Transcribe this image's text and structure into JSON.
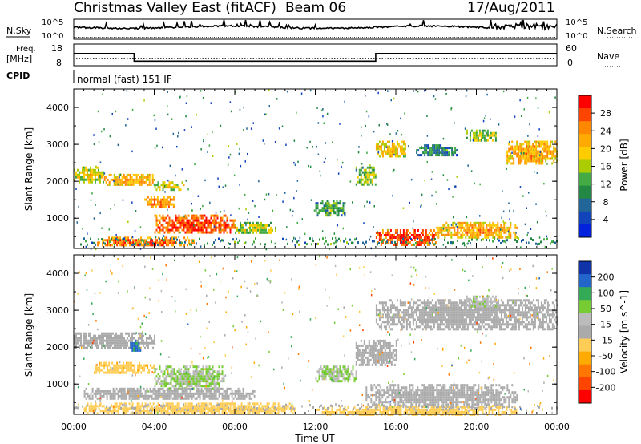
{
  "header": {
    "station": "Christmas Valley East (fitACF)",
    "beam": "Beam 06",
    "date": "17/Aug/2011"
  },
  "aux_panels": {
    "nsky": {
      "label": "N.Sky",
      "ticks": [
        "10^5",
        "10^0"
      ],
      "right_ticks": [
        "10^5",
        "10^0"
      ],
      "right_label": "N.Search"
    },
    "freq": {
      "label_line1": "Freq.",
      "label_line2": "[MHz]",
      "ticks": [
        "18",
        "8"
      ],
      "right_ticks": [
        "60",
        "0"
      ],
      "right_label": "Nave"
    },
    "cpid": {
      "label": "CPID",
      "text": "normal (fast) 151 IF"
    }
  },
  "x_axis": {
    "label": "Time UT",
    "ticks": [
      "00:00",
      "04:00",
      "08:00",
      "12:00",
      "16:00",
      "20:00",
      "00:00"
    ]
  },
  "panels": {
    "power": {
      "ylabel": "Slant Range [km]",
      "yticks": [
        "4000",
        "3000",
        "2000",
        "1000"
      ],
      "cbar_label": "Power [dB]",
      "cbar_ticks": [
        "28",
        "24",
        "20",
        "16",
        "12",
        "8",
        "4"
      ],
      "cbar_colors": [
        "#ff0000",
        "#ff4400",
        "#ff8800",
        "#ffaa00",
        "#ffcc00",
        "#aacc00",
        "#44aa44",
        "#228844",
        "#226699",
        "#1144bb",
        "#0022dd"
      ]
    },
    "velocity": {
      "ylabel": "Slant Range [km]",
      "yticks": [
        "4000",
        "3000",
        "2000",
        "1000"
      ],
      "cbar_label": "Velocity [m s^-1]",
      "cbar_ticks": [
        "200",
        "100",
        "50",
        "15",
        "-15",
        "-50",
        "-100",
        "-200"
      ],
      "cbar_colors": [
        "#1133aa",
        "#2266cc",
        "#33aa55",
        "#77cc33",
        "#bbbbbb",
        "#aaaaaa",
        "#ffcc55",
        "#ffaa00",
        "#ff7700",
        "#ff4400",
        "#ff0000"
      ]
    }
  },
  "chart_data": [
    {
      "type": "heatmap",
      "title": "Christmas Valley East (fitACF) Beam 06 17/Aug/2011",
      "xlabel": "Time UT",
      "ylabel": "Slant Range [km]",
      "colorbar_label": "Power [dB]",
      "x_range": [
        "00:00",
        "24:00"
      ],
      "ylim": [
        180,
        4500
      ],
      "clim": [
        0,
        30
      ],
      "regions": [
        {
          "t_start": 0.0,
          "t_end": 1.5,
          "r_low": 2000,
          "r_high": 2400,
          "value": 18
        },
        {
          "t_start": 1.5,
          "t_end": 4.0,
          "r_low": 1900,
          "r_high": 2200,
          "value": 22
        },
        {
          "t_start": 4.0,
          "t_end": 5.5,
          "r_low": 1800,
          "r_high": 2000,
          "value": 18
        },
        {
          "t_start": 3.5,
          "t_end": 5.0,
          "r_low": 1300,
          "r_high": 1600,
          "value": 24
        },
        {
          "t_start": 4.0,
          "t_end": 8.0,
          "r_low": 600,
          "r_high": 1100,
          "value": 28
        },
        {
          "t_start": 1.0,
          "t_end": 6.0,
          "r_low": 250,
          "r_high": 500,
          "value": 26
        },
        {
          "t_start": 8.0,
          "t_end": 10.0,
          "r_low": 600,
          "r_high": 900,
          "value": 16
        },
        {
          "t_start": 12.0,
          "t_end": 13.5,
          "r_low": 1100,
          "r_high": 1500,
          "value": 12
        },
        {
          "t_start": 14.0,
          "t_end": 15.0,
          "r_low": 1900,
          "r_high": 2400,
          "value": 14
        },
        {
          "t_start": 15.0,
          "t_end": 18.0,
          "r_low": 300,
          "r_high": 700,
          "value": 28
        },
        {
          "t_start": 18.0,
          "t_end": 22.0,
          "r_low": 500,
          "r_high": 900,
          "value": 22
        },
        {
          "t_start": 15.0,
          "t_end": 16.5,
          "r_low": 2700,
          "r_high": 3100,
          "value": 20
        },
        {
          "t_start": 17.0,
          "t_end": 19.0,
          "r_low": 2700,
          "r_high": 3000,
          "value": 10
        },
        {
          "t_start": 19.5,
          "t_end": 21.0,
          "r_low": 3100,
          "r_high": 3400,
          "value": 16
        },
        {
          "t_start": 21.5,
          "t_end": 24.0,
          "r_low": 2500,
          "r_high": 3100,
          "value": 22
        }
      ]
    },
    {
      "type": "heatmap",
      "title": "",
      "xlabel": "Time UT",
      "ylabel": "Slant Range [km]",
      "colorbar_label": "Velocity [m s^-1]",
      "x_range": [
        "00:00",
        "24:00"
      ],
      "ylim": [
        180,
        4500
      ],
      "clim": [
        -200,
        200
      ],
      "regions": [
        {
          "t_start": 0.0,
          "t_end": 4.0,
          "r_low": 2000,
          "r_high": 2400,
          "value": 0
        },
        {
          "t_start": 2.8,
          "t_end": 3.3,
          "r_low": 1900,
          "r_high": 2200,
          "value": 150
        },
        {
          "t_start": 1.0,
          "t_end": 4.0,
          "r_low": 1300,
          "r_high": 1600,
          "value": -50
        },
        {
          "t_start": 4.0,
          "t_end": 7.5,
          "r_low": 900,
          "r_high": 1500,
          "value": 60
        },
        {
          "t_start": 0.5,
          "t_end": 9.0,
          "r_low": 600,
          "r_high": 900,
          "value": 0
        },
        {
          "t_start": 0.5,
          "t_end": 11.0,
          "r_low": 200,
          "r_high": 500,
          "value": -40
        },
        {
          "t_start": 12.0,
          "t_end": 14.0,
          "r_low": 1100,
          "r_high": 1500,
          "value": 60
        },
        {
          "t_start": 14.0,
          "t_end": 16.0,
          "r_low": 1500,
          "r_high": 2200,
          "value": 0
        },
        {
          "t_start": 14.5,
          "t_end": 22.0,
          "r_low": 400,
          "r_high": 1000,
          "value": 0
        },
        {
          "t_start": 12.0,
          "t_end": 22.0,
          "r_low": 200,
          "r_high": 400,
          "value": -40
        },
        {
          "t_start": 15.0,
          "t_end": 24.0,
          "r_low": 2500,
          "r_high": 3300,
          "value": 5
        },
        {
          "t_start": 19.5,
          "t_end": 21.0,
          "r_low": 3100,
          "r_high": 3400,
          "value": 50
        }
      ]
    },
    {
      "type": "line",
      "title": "",
      "ylabel": "Freq. [MHz]",
      "series": [],
      "x": [
        0,
        3,
        3,
        15,
        15,
        24
      ],
      "values": [
        14,
        14,
        10.5,
        10.5,
        14,
        14
      ]
    }
  ]
}
